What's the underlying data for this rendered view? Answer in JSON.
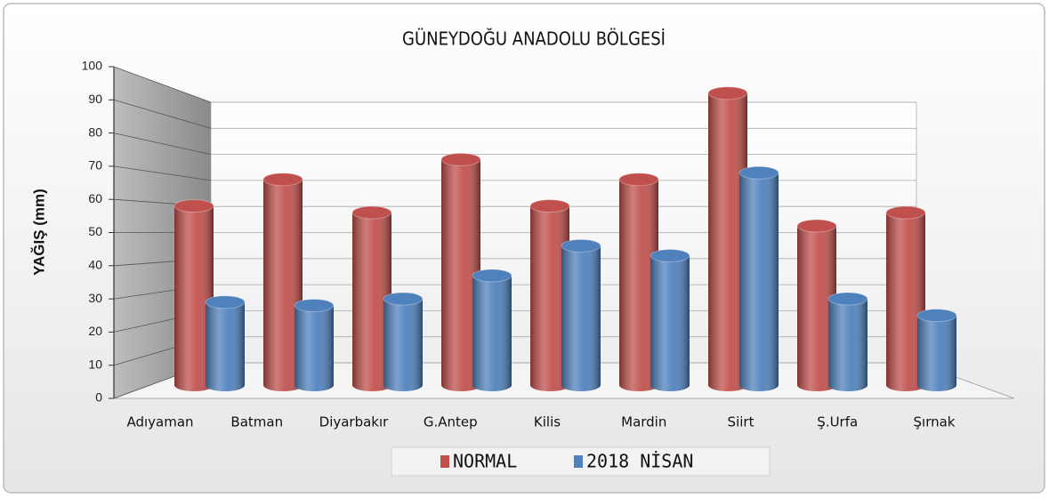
{
  "chart_data": {
    "type": "bar",
    "title": "GÜNEYDOĞU ANADOLU BÖLGESİ",
    "y_label": "YAĞIŞ (mm)",
    "categories": [
      "Adıyaman",
      "Batman",
      "Diyarbakır",
      "G.Antep",
      "Kilis",
      "Mardin",
      "Siirt",
      "Ş.Urfa",
      "Şırnak"
    ],
    "series": [
      {
        "name": "NORMAL",
        "color": "#c0504d",
        "values": [
          54,
          62,
          52,
          68,
          54,
          62,
          88,
          48,
          52
        ]
      },
      {
        "name": "2018 NİSAN",
        "color": "#4f81bd",
        "values": [
          25,
          24,
          26,
          33,
          42,
          39,
          64,
          26,
          21
        ]
      }
    ],
    "ylim": [
      0,
      100
    ],
    "yticks": [
      0,
      10,
      20,
      30,
      40,
      50,
      60,
      70,
      80,
      90,
      100
    ],
    "grid": true,
    "legend": "bottom"
  }
}
